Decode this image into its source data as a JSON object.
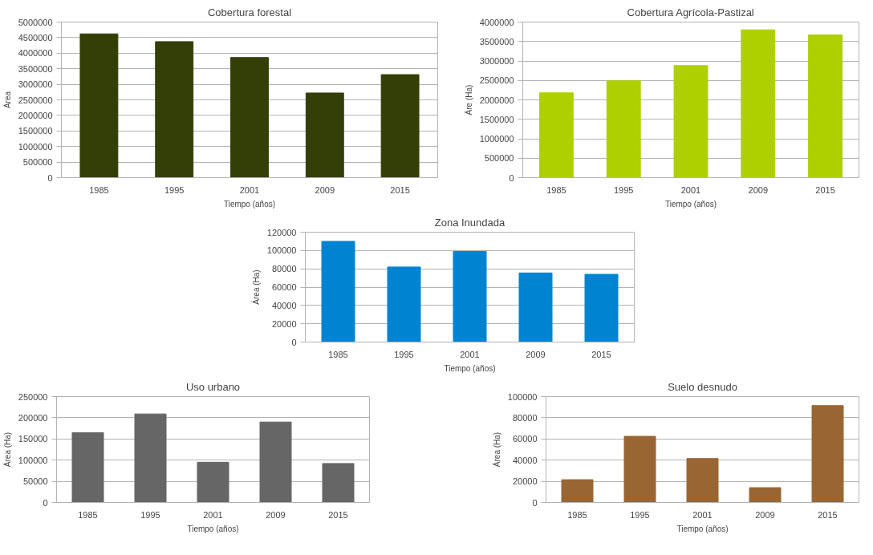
{
  "chart_data": [
    {
      "type": "bar",
      "title": "Cobertura forestal",
      "xlabel": "Tiempo (años)",
      "ylabel": "Área",
      "categories": [
        "1985",
        "1995",
        "2001",
        "2009",
        "2015"
      ],
      "values": [
        4620000,
        4370000,
        3860000,
        2720000,
        3310000
      ],
      "color": "#333f06",
      "ylim": [
        0,
        5000000
      ],
      "yticks": [
        0,
        500000,
        1000000,
        1500000,
        2000000,
        2500000,
        3000000,
        3500000,
        4000000,
        4500000,
        5000000
      ],
      "grid": "y"
    },
    {
      "type": "bar",
      "title": "Cobertura Agrícola-Pastizal",
      "xlabel": "Tiempo (años)",
      "ylabel": "Áre (Ha)",
      "categories": [
        "1985",
        "1995",
        "2001",
        "2009",
        "2015"
      ],
      "values": [
        2180000,
        2490000,
        2880000,
        3800000,
        3670000
      ],
      "color": "#aecf00",
      "ylim": [
        0,
        4000000
      ],
      "yticks": [
        0,
        500000,
        1000000,
        1500000,
        2000000,
        2500000,
        3000000,
        3500000,
        4000000
      ],
      "grid": "y"
    },
    {
      "type": "bar",
      "title": "Zona Inundada",
      "xlabel": "Tiempo (años)",
      "ylabel": "Área (Ha)",
      "categories": [
        "1985",
        "1995",
        "2001",
        "2009",
        "2015"
      ],
      "values": [
        110000,
        82000,
        99000,
        75500,
        74000
      ],
      "color": "#0084d1",
      "ylim": [
        0,
        120000
      ],
      "yticks": [
        0,
        20000,
        40000,
        60000,
        80000,
        100000,
        120000
      ],
      "grid": "y"
    },
    {
      "type": "bar",
      "title": "Uso urbano",
      "xlabel": "Tiempo (años)",
      "ylabel": "Área (Ha)",
      "categories": [
        "1985",
        "1995",
        "2001",
        "2009",
        "2015"
      ],
      "values": [
        165000,
        209000,
        95000,
        190000,
        92000
      ],
      "color": "#666666",
      "ylim": [
        0,
        250000
      ],
      "yticks": [
        0,
        50000,
        100000,
        150000,
        200000,
        250000
      ],
      "grid": "y"
    },
    {
      "type": "bar",
      "title": "Suelo desnudo",
      "xlabel": "Tiempo (años)",
      "ylabel": "Área (Ha)",
      "categories": [
        "1985",
        "1995",
        "2001",
        "2009",
        "2015"
      ],
      "values": [
        21500,
        62500,
        41500,
        14000,
        91500
      ],
      "color": "#996633",
      "ylim": [
        0,
        100000
      ],
      "yticks": [
        0,
        20000,
        40000,
        60000,
        80000,
        100000
      ],
      "grid": "y"
    }
  ]
}
